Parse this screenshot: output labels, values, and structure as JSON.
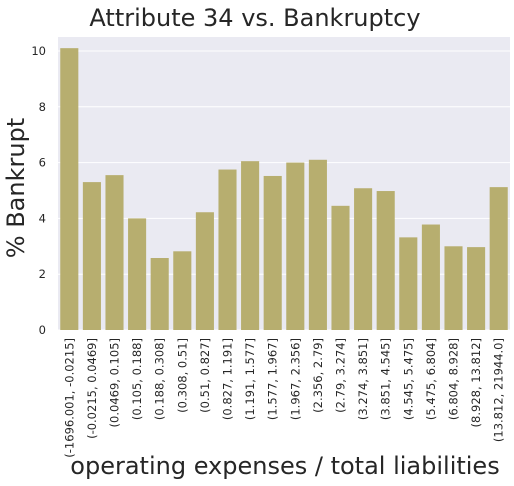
{
  "chart_data": {
    "type": "bar",
    "title": "Attribute 34 vs. Bankruptcy",
    "xlabel": "operating expenses / total liabilities",
    "ylabel": "% Bankrupt",
    "ylim": [
      0,
      10.5
    ],
    "yticks": [
      0,
      2,
      4,
      6,
      8,
      10
    ],
    "grid": true,
    "bar_color": "#b7ae6f",
    "background": "#eaeaf2",
    "categories": [
      "(-1696.001, -0.0215]",
      "(-0.0215, 0.0469]",
      "(0.0469, 0.105]",
      "(0.105, 0.188]",
      "(0.188, 0.308]",
      "(0.308, 0.51]",
      "(0.51, 0.827]",
      "(0.827, 1.191]",
      "(1.191, 1.577]",
      "(1.577, 1.967]",
      "(1.967, 2.356]",
      "(2.356, 2.79]",
      "(2.79, 3.274]",
      "(3.274, 3.851]",
      "(3.851, 4.545]",
      "(4.545, 5.475]",
      "(5.475, 6.804]",
      "(6.804, 8.928]",
      "(8.928, 13.812]",
      "(13.812, 21944.0]"
    ],
    "values": [
      10.1,
      5.3,
      5.55,
      4.0,
      2.58,
      2.82,
      4.22,
      5.75,
      6.05,
      5.52,
      6.0,
      6.1,
      4.45,
      5.08,
      4.98,
      3.32,
      3.78,
      3.0,
      2.97,
      5.12
    ]
  }
}
